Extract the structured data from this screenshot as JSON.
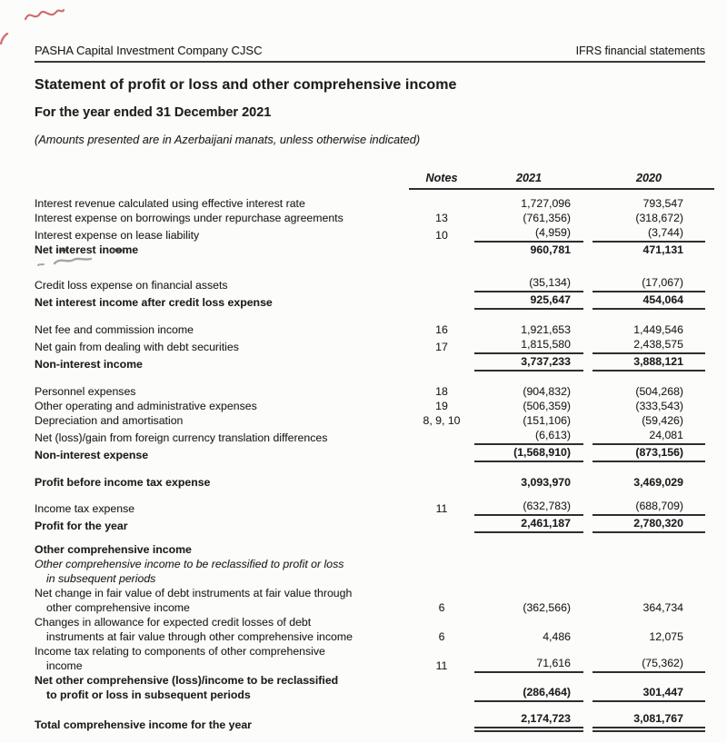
{
  "page": {
    "header_left": "PASHA Capital Investment Company CJSC",
    "header_right": "IFRS financial statements",
    "title": "Statement of profit or loss and other comprehensive income",
    "subtitle": "For the year ended 31 December 2021",
    "amounts_note": "(Amounts presented are in Azerbaijani manats, unless otherwise indicated)"
  },
  "artifacts": {
    "red_pen_scribble": "red-pen-scribble",
    "pencil_squiggle": "pencil-squiggle"
  },
  "table": {
    "columns": {
      "notes": "Notes",
      "y2021": "2021",
      "y2020": "2020"
    },
    "rows": [
      {
        "label": "Interest revenue calculated using effective interest rate",
        "note": "",
        "v2021": "1,727,096",
        "v2020": "793,547"
      },
      {
        "label": "Interest expense on borrowings under repurchase agreements",
        "note": "13",
        "v2021": "(761,356)",
        "v2020": "(318,672)"
      },
      {
        "label": "Interest expense on lease liability",
        "note": "10",
        "v2021": "(4,959)",
        "v2020": "(3,744)",
        "underline": true
      },
      {
        "label": "Net interest income",
        "bold": true,
        "smudge": true,
        "v2021": "960,781",
        "v2020": "471,131"
      },
      {
        "label": "Credit loss expense on financial assets",
        "v2021": "(35,134)",
        "v2020": "(17,067)",
        "underline": true,
        "gap": "lg"
      },
      {
        "label": "Net interest income after credit loss expense",
        "bold": true,
        "v2021": "925,647",
        "v2020": "454,064",
        "underline": true
      },
      {
        "label": "Net fee and commission income",
        "note": "16",
        "v2021": "1,921,653",
        "v2020": "1,449,546",
        "gap": "md"
      },
      {
        "label": "Net gain from dealing with debt securities",
        "note": "17",
        "v2021": "1,815,580",
        "v2020": "2,438,575",
        "underline": true
      },
      {
        "label": "Non-interest income",
        "bold": true,
        "v2021": "3,737,233",
        "v2020": "3,888,121",
        "underline": true
      },
      {
        "label": "Personnel expenses",
        "note": "18",
        "v2021": "(904,832)",
        "v2020": "(504,268)",
        "gap": "md"
      },
      {
        "label": "Other operating and administrative expenses",
        "note": "19",
        "v2021": "(506,359)",
        "v2020": "(333,543)"
      },
      {
        "label": "Depreciation and amortisation",
        "note": "8, 9, 10",
        "v2021": "(151,106)",
        "v2020": "(59,426)"
      },
      {
        "label": "Net (loss)/gain from foreign currency translation differences",
        "v2021": "(6,613)",
        "v2020": "24,081",
        "underline": true
      },
      {
        "label": "Non-interest expense",
        "bold": true,
        "v2021": "(1,568,910)",
        "v2020": "(873,156)",
        "underline": true
      },
      {
        "label": "Profit before income tax expense",
        "bold": true,
        "v2021": "3,093,970",
        "v2020": "3,469,029",
        "gap": "md"
      },
      {
        "label": "Income tax expense",
        "note": "11",
        "v2021": "(632,783)",
        "v2020": "(688,709)",
        "underline": true,
        "gap": "sm"
      },
      {
        "label": "Profit for the year",
        "bold": true,
        "v2021": "2,461,187",
        "v2020": "2,780,320",
        "underline": true
      },
      {
        "label": "Other comprehensive income",
        "bold": true,
        "gap": "sm"
      },
      {
        "lines": [
          "Other comprehensive income to be reclassified to profit or loss",
          "in subsequent periods"
        ],
        "italic": true
      },
      {
        "lines": [
          "Net change in fair value of debt instruments at fair value through",
          "other comprehensive income"
        ],
        "note": "6",
        "v2021": "(362,566)",
        "v2020": "364,734"
      },
      {
        "lines": [
          "Changes in allowance for expected credit losses of debt",
          "instruments at fair value through other comprehensive income"
        ],
        "note": "6",
        "v2021": "4,486",
        "v2020": "12,075"
      },
      {
        "lines": [
          "Income tax relating to components of other comprehensive",
          "income"
        ],
        "note": "11",
        "v2021": "71,616",
        "v2020": "(75,362)",
        "underline": true
      },
      {
        "lines": [
          "Net other comprehensive (loss)/income to be reclassified",
          "to profit or loss in subsequent periods"
        ],
        "bold": true,
        "v2021": "(286,464)",
        "v2020": "301,447",
        "underline": true
      },
      {
        "label": "Total comprehensive income for the year",
        "bold": true,
        "v2021": "2,174,723",
        "v2020": "3,081,767",
        "double_underline": true,
        "gap": "sm"
      }
    ]
  }
}
